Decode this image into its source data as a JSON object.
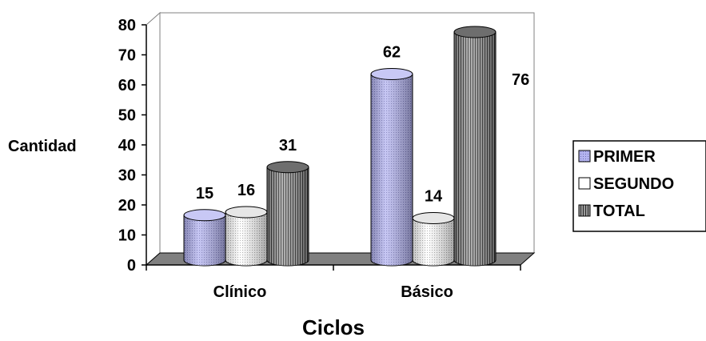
{
  "chart_data": {
    "type": "bar",
    "style": "3d-cylinder",
    "title": "",
    "xlabel": "Ciclos",
    "ylabel": "Cantidad",
    "categories": [
      "Clínico",
      "Básico"
    ],
    "series": [
      {
        "name": "PRIMER",
        "values": [
          15,
          62
        ],
        "color": "#b4b4f0",
        "pattern": "dots"
      },
      {
        "name": "SEGUNDO",
        "values": [
          16,
          14
        ],
        "color": "#ffffff",
        "pattern": "dots"
      },
      {
        "name": "TOTAL",
        "values": [
          31,
          76
        ],
        "color": "#5a5a5a",
        "pattern": "vertical-lines"
      }
    ],
    "data_labels": [
      [
        "15",
        "62"
      ],
      [
        "16",
        "14"
      ],
      [
        "31",
        "76"
      ]
    ],
    "ylim": [
      0,
      80
    ],
    "yticks": [
      "0",
      "10",
      "20",
      "30",
      "40",
      "50",
      "60",
      "70",
      "80"
    ],
    "grid": false,
    "legend_position": "right",
    "floor_color": "#808080"
  }
}
